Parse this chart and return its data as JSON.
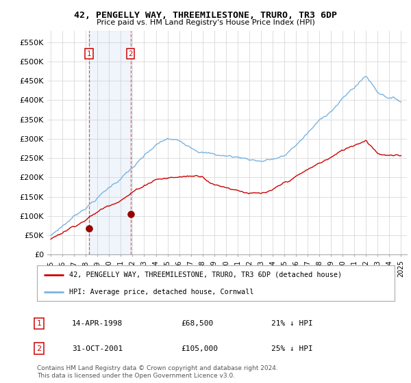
{
  "title": "42, PENGELLY WAY, THREEMILESTONE, TRURO, TR3 6DP",
  "subtitle": "Price paid vs. HM Land Registry's House Price Index (HPI)",
  "legend_line1": "42, PENGELLY WAY, THREEMILESTONE, TRURO, TR3 6DP (detached house)",
  "legend_line2": "HPI: Average price, detached house, Cornwall",
  "transaction1_date": "14-APR-1998",
  "transaction1_price": "£68,500",
  "transaction1_hpi": "21% ↓ HPI",
  "transaction2_date": "31-OCT-2001",
  "transaction2_price": "£105,000",
  "transaction2_hpi": "25% ↓ HPI",
  "footer": "Contains HM Land Registry data © Crown copyright and database right 2024.\nThis data is licensed under the Open Government Licence v3.0.",
  "hpi_color": "#7ab3e0",
  "price_color": "#cc0000",
  "ylabel_ticks": [
    "£0",
    "£50K",
    "£100K",
    "£150K",
    "£200K",
    "£250K",
    "£300K",
    "£350K",
    "£400K",
    "£450K",
    "£500K",
    "£550K"
  ],
  "ytick_values": [
    0,
    50000,
    100000,
    150000,
    200000,
    250000,
    300000,
    350000,
    400000,
    450000,
    500000,
    550000
  ],
  "ylim": [
    0,
    580000
  ],
  "transaction1_x": 1998.28,
  "transaction1_y": 68500,
  "transaction2_x": 2001.83,
  "transaction2_y": 105000,
  "vline1_x": 1998.28,
  "vline2_x": 2001.83,
  "xlim_min": 1994.7,
  "xlim_max": 2025.5
}
